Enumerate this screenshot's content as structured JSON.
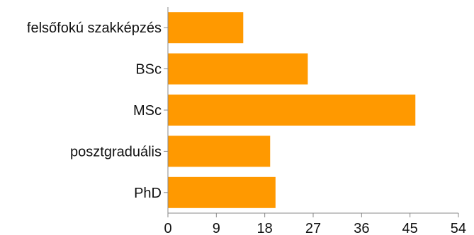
{
  "chart_data": {
    "type": "bar",
    "orientation": "horizontal",
    "categories": [
      "felsőfokú szakképzés",
      "BSc",
      "MSc",
      "posztgraduális",
      "PhD"
    ],
    "values": [
      14,
      26,
      46,
      19,
      20
    ],
    "xlim": [
      0,
      54
    ],
    "xticks": [
      "0",
      "9",
      "18",
      "27",
      "36",
      "45",
      "54"
    ],
    "bar_color": "#FF9900",
    "axis_color": "#888888",
    "grid": false,
    "title": "",
    "xlabel": "",
    "ylabel": ""
  }
}
